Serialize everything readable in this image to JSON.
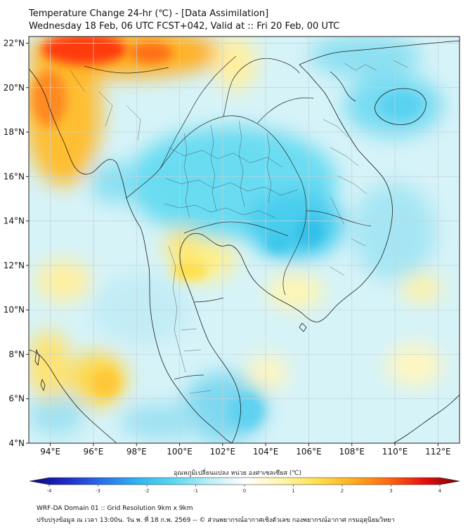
{
  "title_line1": "Temperature Change 24-hr (℃) - [Data Assimilation]",
  "title_line2": "Wednesday 18 Feb, 06 UTC FCST+042, Valid at :: Fri 20 Feb, 00 UTC",
  "axes": {
    "lon_ticks": [
      "94°E",
      "96°E",
      "98°E",
      "100°E",
      "102°E",
      "104°E",
      "106°E",
      "108°E",
      "110°E",
      "112°E"
    ],
    "lat_ticks": [
      "22°N",
      "20°N",
      "18°N",
      "16°N",
      "14°N",
      "12°N",
      "10°N",
      "8°N",
      "6°N",
      "4°N"
    ],
    "lon_values": [
      94,
      96,
      98,
      100,
      102,
      104,
      106,
      108,
      110,
      112
    ],
    "lat_values": [
      22,
      20,
      18,
      16,
      14,
      12,
      10,
      8,
      6,
      4
    ],
    "lon_range": [
      93,
      113
    ],
    "lat_range": [
      4,
      22.3
    ]
  },
  "colorbar": {
    "title": "อุณหภูมิเปลี่ยนแปลง หน่วย องศาเซลเซียส (℃)",
    "ticks": [
      "-4",
      "-3",
      "-2",
      "-1",
      "0",
      "1",
      "2",
      "3",
      "4"
    ],
    "tick_values": [
      -4,
      -3,
      -2,
      -1,
      0,
      1,
      2,
      3,
      4
    ],
    "range": [
      -4,
      4
    ],
    "stops": [
      "#0a0a78",
      "#1e28c8",
      "#2a6ee8",
      "#30b4f0",
      "#5ad8f0",
      "#b8eef8",
      "#ffffff",
      "#fff6b0",
      "#ffe050",
      "#ffb020",
      "#ff6a10",
      "#e81010",
      "#7a0000"
    ]
  },
  "footer_line1": "WRF-DA Domain 01 :: Grid Resolution 9km x 9km",
  "footer_line2": "ปรับปรุงข้อมูล ณ เวลา 13:00น. วัน พ. ที่ 18 ก.พ. 2569 -- © ส่วนพยากรณ์อากาศเชิงตัวเลข กองพยากรณ์อากาศ กรมอุตุนิยมวิทยา",
  "colors": {
    "background_field": "#d2f2f8",
    "warm": "#ffd040",
    "hot": "#ff3010",
    "cool": "#40d0ee",
    "coast": "#222222",
    "grid": "#bfcfd4"
  }
}
